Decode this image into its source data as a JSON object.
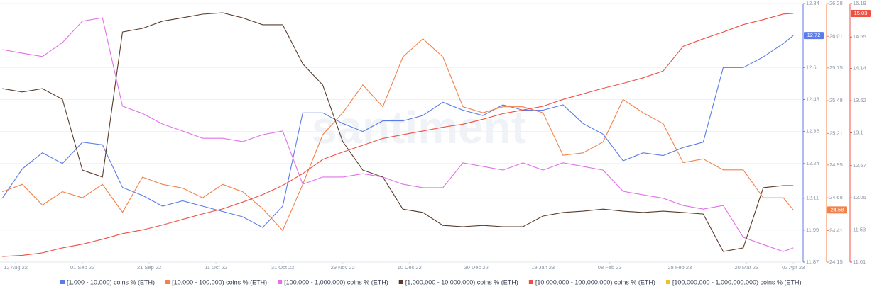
{
  "chart_data": {
    "type": "line",
    "watermark": "santiment",
    "xlim": [
      -4.7,
      235.3
    ],
    "xticks": [
      {
        "value": 0,
        "label": "12 Aug 22"
      },
      {
        "value": 20,
        "label": "01 Sep 22"
      },
      {
        "value": 40,
        "label": "21 Sep 22"
      },
      {
        "value": 60,
        "label": "11 Oct 22"
      },
      {
        "value": 80,
        "label": "31 Oct 22"
      },
      {
        "value": 98,
        "label": "29 Nov 22"
      },
      {
        "value": 118,
        "label": "10 Dec 22"
      },
      {
        "value": 138,
        "label": "30 Dec 22"
      },
      {
        "value": 158,
        "label": "19 Jan 23"
      },
      {
        "value": 178,
        "label": "08 Feb 23"
      },
      {
        "value": 199,
        "label": "28 Feb 23"
      },
      {
        "value": 219,
        "label": "20 Mar 23"
      },
      {
        "value": 233,
        "label": "02 Apr 23"
      }
    ],
    "x": [
      -4,
      2,
      8,
      14,
      20,
      26,
      32,
      38,
      44,
      50,
      56,
      62,
      68,
      74,
      80,
      86,
      92,
      98,
      104,
      110,
      116,
      122,
      128,
      134,
      140,
      146,
      152,
      158,
      164,
      170,
      176,
      182,
      188,
      194,
      200,
      206,
      212,
      218,
      224,
      230,
      233
    ],
    "grid": true,
    "axes": [
      {
        "color": "#5b7be9",
        "ylim": [
          11.87,
          12.84
        ],
        "yticks": [
          12.84,
          12.6,
          12.48,
          12.36,
          12.24,
          12.11,
          11.99,
          11.87
        ]
      },
      {
        "color": "#f3814a",
        "ylim": [
          24.15,
          26.28
        ],
        "yticks": [
          26.28,
          26.01,
          25.75,
          25.48,
          25.21,
          24.95,
          24.68,
          24.41,
          24.15
        ]
      },
      {
        "color": "#f04f44",
        "ylim": [
          11.01,
          15.19
        ],
        "yticks": [
          15.19,
          14.65,
          14.14,
          13.62,
          13.1,
          12.57,
          12.05,
          11.53,
          11.01
        ]
      },
      {
        "ylim": [
          0,
          100
        ]
      }
    ],
    "series": [
      {
        "name": "[1,000 - 10,000) coins % (ETH)",
        "color": "#5b7be9",
        "axis": 0,
        "values": [
          12.11,
          12.22,
          12.28,
          12.24,
          12.32,
          12.31,
          12.15,
          12.12,
          12.08,
          12.1,
          12.08,
          12.06,
          12.04,
          12.0,
          12.08,
          12.43,
          12.43,
          12.39,
          12.36,
          12.4,
          12.4,
          12.42,
          12.47,
          12.44,
          12.42,
          12.46,
          12.44,
          12.44,
          12.46,
          12.39,
          12.35,
          12.25,
          12.28,
          12.27,
          12.3,
          12.32,
          12.6,
          12.6,
          12.64,
          12.69,
          12.72
        ]
      },
      {
        "name": "[10,000 - 100,000) coins % (ETH)",
        "color": "#f3814a",
        "axis": 1,
        "values": [
          24.73,
          24.79,
          24.62,
          24.73,
          24.68,
          24.79,
          24.56,
          24.85,
          24.79,
          24.76,
          24.68,
          24.79,
          24.73,
          24.59,
          24.41,
          24.79,
          25.2,
          25.38,
          25.61,
          25.43,
          25.84,
          25.99,
          25.84,
          25.43,
          25.38,
          25.43,
          25.43,
          25.38,
          25.03,
          25.05,
          25.14,
          25.49,
          25.38,
          25.29,
          24.97,
          25.0,
          24.91,
          24.91,
          24.68,
          24.68,
          24.58
        ]
      },
      {
        "name": "[100,000 - 1,000,000) coins % (ETH)",
        "color": "#e270e8",
        "axis": 3,
        "values": [
          82.2,
          80.8,
          79.5,
          84.9,
          93.2,
          94.5,
          60.3,
          57.5,
          53.4,
          50.7,
          47.9,
          47.9,
          46.6,
          49.3,
          50.7,
          30.1,
          32.9,
          32.9,
          34.2,
          32.9,
          30.1,
          28.8,
          28.8,
          38.4,
          37.0,
          35.6,
          38.4,
          35.6,
          38.4,
          37.0,
          35.6,
          27.4,
          26.0,
          24.7,
          21.9,
          20.5,
          21.9,
          9.6,
          6.8,
          4.1,
          5.5
        ]
      },
      {
        "name": "[1,000,000 - 10,000,000) coins % (ETH)",
        "color": "#5a3a2a",
        "axis": 3,
        "values": [
          67.1,
          65.8,
          67.1,
          63.0,
          35.6,
          32.9,
          89.0,
          90.4,
          93.2,
          94.5,
          95.9,
          96.4,
          94.5,
          91.8,
          91.8,
          76.7,
          68.5,
          46.6,
          35.6,
          32.9,
          20.5,
          19.2,
          14.2,
          13.7,
          14.2,
          13.7,
          13.7,
          17.8,
          19.2,
          19.7,
          20.5,
          19.7,
          19.2,
          19.7,
          19.2,
          18.6,
          4.1,
          5.5,
          28.8,
          29.6,
          29.6
        ]
      },
      {
        "name": "[10,000,000 - 100,000,000) coins % (ETH)",
        "color": "#f04f44",
        "axis": 2,
        "values": [
          11.1,
          11.12,
          11.16,
          11.24,
          11.3,
          11.38,
          11.47,
          11.53,
          11.61,
          11.7,
          11.79,
          11.87,
          11.98,
          12.1,
          12.25,
          12.44,
          12.67,
          12.79,
          12.9,
          13.01,
          13.07,
          13.13,
          13.19,
          13.24,
          13.32,
          13.41,
          13.47,
          13.53,
          13.64,
          13.73,
          13.82,
          13.9,
          13.99,
          14.1,
          14.5,
          14.62,
          14.73,
          14.85,
          14.93,
          15.02,
          15.03
        ]
      },
      {
        "name": "[100,000,000 - 1,000,000,000) coins % (ETH)",
        "color": "#f2c02e",
        "axis": 3,
        "values": [
          null,
          null,
          null,
          null,
          null,
          null,
          null,
          null,
          null,
          null,
          null,
          null,
          null,
          null,
          null,
          null,
          null,
          null,
          null,
          null,
          null,
          null,
          null,
          null,
          null,
          null,
          null,
          null,
          null,
          null,
          null,
          null,
          null,
          null,
          null,
          null,
          null,
          null,
          null,
          null,
          null
        ]
      }
    ]
  }
}
